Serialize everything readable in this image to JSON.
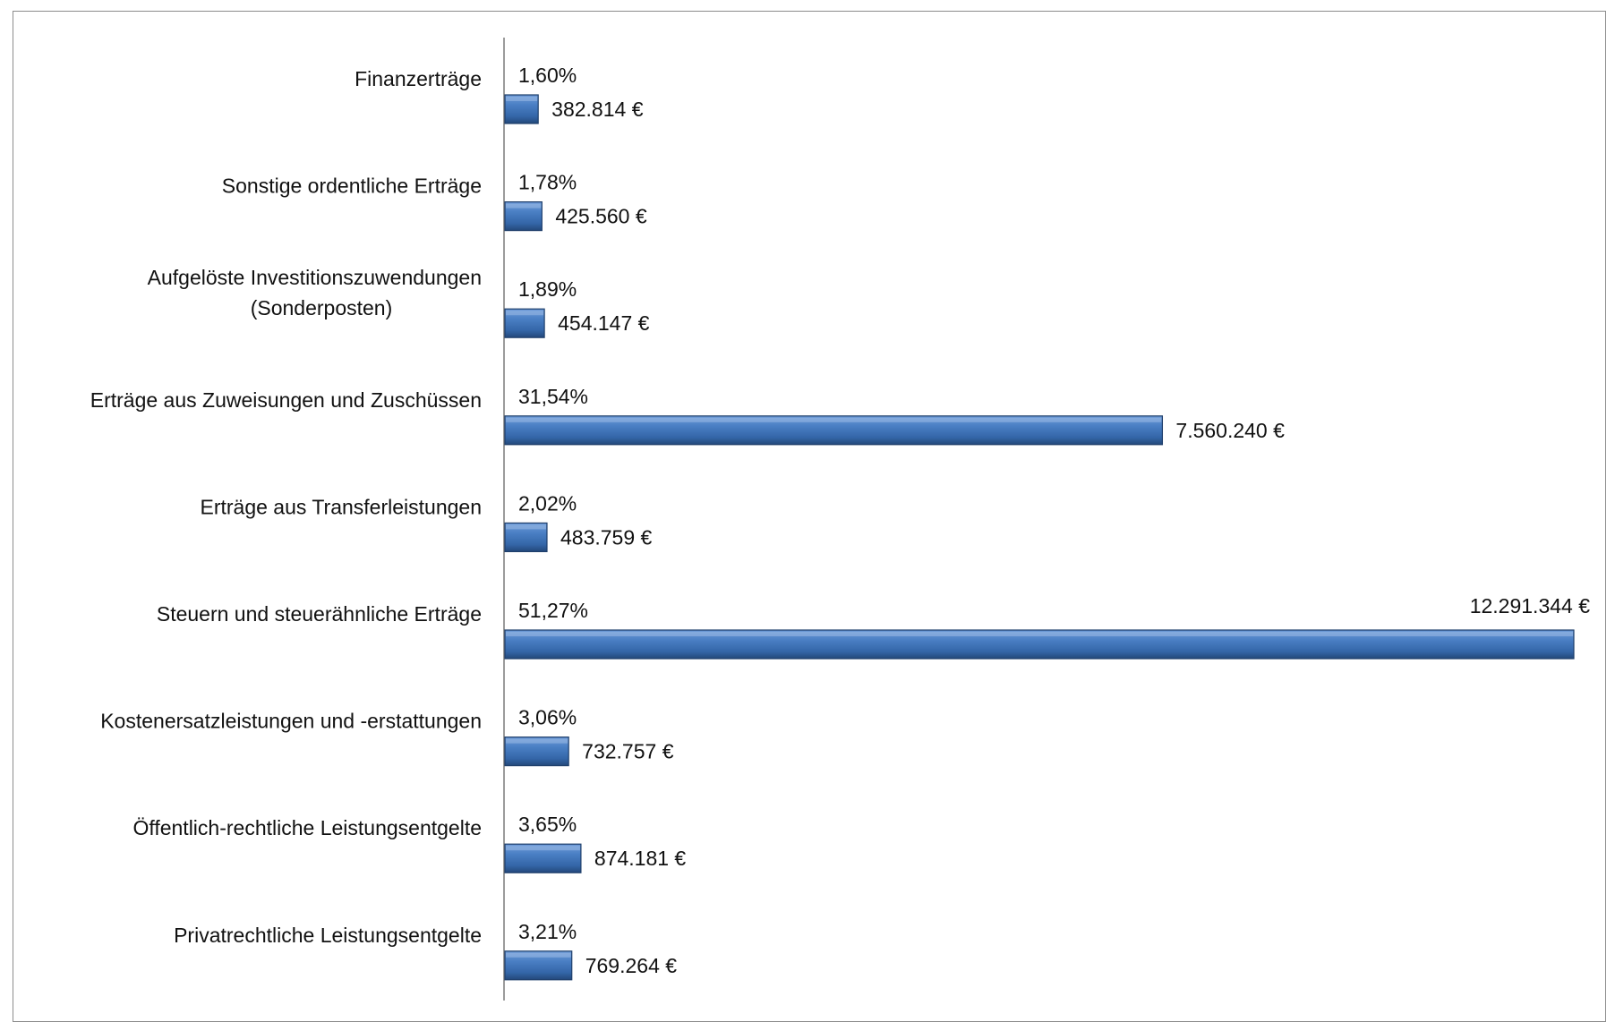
{
  "chart_data": {
    "type": "bar",
    "orientation": "horizontal",
    "title": "",
    "xlabel": "",
    "ylabel": "",
    "grid": false,
    "legend": "none",
    "bar_color": "#3A6DB0",
    "bar_color_light": "#5B8FD3",
    "bar_color_dark": "#23487A",
    "xlim": [
      0,
      12291344
    ],
    "categories": [
      "Finanzerträge",
      "Sonstige ordentliche Erträge",
      "Aufgelöste  Investitionszuwendungen (Sonderposten)",
      "Erträge aus Zuweisungen und Zuschüssen",
      "Erträge aus Transferleistungen",
      "Steuern und steuerähnliche Erträge",
      "Kostenersatzleistungen und -erstattungen",
      "Öffentlich-rechtliche Leistungsentgelte",
      "Privatrechtliche Leistungsentgelte"
    ],
    "category_lines": [
      [
        "Finanzerträge"
      ],
      [
        "Sonstige ordentliche Erträge"
      ],
      [
        "Aufgelöste  Investitionszuwendungen",
        "(Sonderposten)"
      ],
      [
        "Erträge aus Zuweisungen und Zuschüssen"
      ],
      [
        "Erträge aus Transferleistungen"
      ],
      [
        "Steuern und steuerähnliche Erträge"
      ],
      [
        "Kostenersatzleistungen und -erstattungen"
      ],
      [
        "Öffentlich-rechtliche Leistungsentgelte"
      ],
      [
        "Privatrechtliche Leistungsentgelte"
      ]
    ],
    "values": [
      382814,
      425560,
      454147,
      7560240,
      483759,
      12291344,
      732757,
      874181,
      769264
    ],
    "value_labels": [
      "382.814 €",
      "425.560 €",
      "454.147 €",
      "7.560.240 €",
      "483.759 €",
      "12.291.344 €",
      "732.757 €",
      "874.181 €",
      "769.264 €"
    ],
    "percentages": [
      1.6,
      1.78,
      1.89,
      31.54,
      2.02,
      51.27,
      3.06,
      3.65,
      3.21
    ],
    "percentage_labels": [
      "1,60%",
      "1,78%",
      "1,89%",
      "31,54%",
      "2,02%",
      "51,27%",
      "3,06%",
      "3,65%",
      "3,21%"
    ]
  }
}
